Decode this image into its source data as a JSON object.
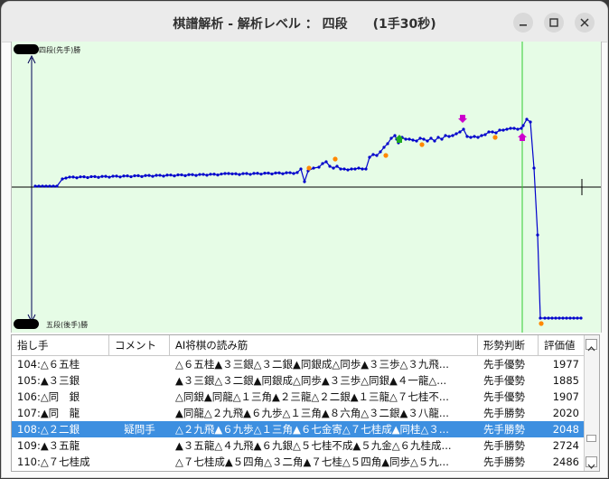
{
  "window": {
    "title": "棋譜解析 - 解析レベル ： 四段　　(1手30秒)"
  },
  "graph": {
    "top_label": "四段(先手)勝",
    "bottom_label": "五段(後手)勝"
  },
  "table": {
    "headers": [
      "指し手",
      "コメント",
      "AI将棋の読み筋",
      "形勢判断",
      "評価値"
    ],
    "rows": [
      {
        "move": "104:△６五桂",
        "comment": "",
        "line": "△６五桂▲３三銀△３二銀▲同銀成△同歩▲３三歩△３九飛...",
        "judge": "先手優勢",
        "score": "1977"
      },
      {
        "move": "105:▲３三銀",
        "comment": "",
        "line": "▲３三銀△３二銀▲同銀成△同歩▲３三歩△同銀▲４一龍△...",
        "judge": "先手優勢",
        "score": "1885"
      },
      {
        "move": "106:△同　銀",
        "comment": "",
        "line": "△同銀▲同龍△１三角▲２三龍△２二銀▲１三龍△７七桂不...",
        "judge": "先手優勢",
        "score": "1907"
      },
      {
        "move": "107:▲同　龍",
        "comment": "",
        "line": "▲同龍△２九飛▲６九歩△１三角▲８六角△３二銀▲３八龍...",
        "judge": "先手勝勢",
        "score": "2020"
      },
      {
        "move": "108:△２二銀",
        "comment": "疑問手",
        "line": "△２九飛▲６九歩△１三角▲６七金寄△７七桂成▲同桂△３...",
        "judge": "先手勝勢",
        "score": "2048"
      },
      {
        "move": "109:▲３五龍",
        "comment": "",
        "line": "▲３五龍△４九飛▲６九銀△５七桂不成▲５九金△６九桂成...",
        "judge": "先手勝勢",
        "score": "2724"
      },
      {
        "move": "110:△７七桂成",
        "comment": "",
        "line": "△７七桂成▲５四角△３二角▲７七桂△５四角▲同歩△５九...",
        "judge": "先手勝勢",
        "score": "2486"
      }
    ],
    "selected_row": 4
  },
  "colors": {
    "graph_bg": "#e6fce6",
    "line": "#0000cc",
    "cursor": "#33cc33",
    "selection": "#3d8fe0"
  }
}
